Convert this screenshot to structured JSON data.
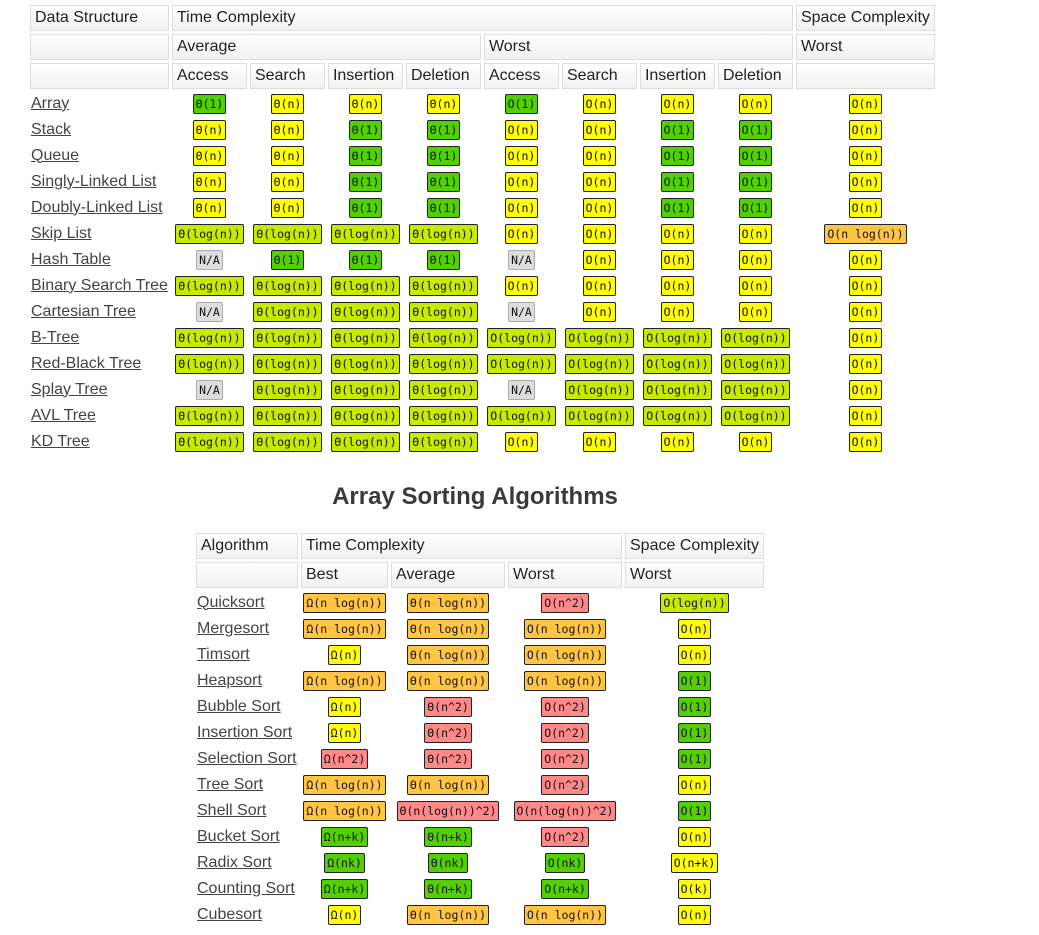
{
  "colors": {
    "green": "#53d000",
    "lgreen": "#c8ea00",
    "yellow": "#ffff00",
    "orange": "#ffc543",
    "red": "#ff8888",
    "gray": "#dddddd"
  },
  "ds_table": {
    "headers": {
      "data_structure": "Data Structure",
      "time_complexity": "Time Complexity",
      "space_complexity": "Space Complexity",
      "average": "Average",
      "worst": "Worst",
      "space_worst": "Worst",
      "ops": [
        "Access",
        "Search",
        "Insertion",
        "Deletion",
        "Access",
        "Search",
        "Insertion",
        "Deletion"
      ]
    },
    "rows": [
      {
        "name": "Array",
        "cells": [
          [
            "Θ(1)",
            "green"
          ],
          [
            "Θ(n)",
            "yellow"
          ],
          [
            "Θ(n)",
            "yellow"
          ],
          [
            "Θ(n)",
            "yellow"
          ],
          [
            "O(1)",
            "green"
          ],
          [
            "O(n)",
            "yellow"
          ],
          [
            "O(n)",
            "yellow"
          ],
          [
            "O(n)",
            "yellow"
          ],
          [
            "O(n)",
            "yellow"
          ]
        ]
      },
      {
        "name": "Stack",
        "cells": [
          [
            "Θ(n)",
            "yellow"
          ],
          [
            "Θ(n)",
            "yellow"
          ],
          [
            "Θ(1)",
            "green"
          ],
          [
            "Θ(1)",
            "green"
          ],
          [
            "O(n)",
            "yellow"
          ],
          [
            "O(n)",
            "yellow"
          ],
          [
            "O(1)",
            "green"
          ],
          [
            "O(1)",
            "green"
          ],
          [
            "O(n)",
            "yellow"
          ]
        ]
      },
      {
        "name": "Queue",
        "cells": [
          [
            "Θ(n)",
            "yellow"
          ],
          [
            "Θ(n)",
            "yellow"
          ],
          [
            "Θ(1)",
            "green"
          ],
          [
            "Θ(1)",
            "green"
          ],
          [
            "O(n)",
            "yellow"
          ],
          [
            "O(n)",
            "yellow"
          ],
          [
            "O(1)",
            "green"
          ],
          [
            "O(1)",
            "green"
          ],
          [
            "O(n)",
            "yellow"
          ]
        ]
      },
      {
        "name": "Singly-Linked List",
        "cells": [
          [
            "Θ(n)",
            "yellow"
          ],
          [
            "Θ(n)",
            "yellow"
          ],
          [
            "Θ(1)",
            "green"
          ],
          [
            "Θ(1)",
            "green"
          ],
          [
            "O(n)",
            "yellow"
          ],
          [
            "O(n)",
            "yellow"
          ],
          [
            "O(1)",
            "green"
          ],
          [
            "O(1)",
            "green"
          ],
          [
            "O(n)",
            "yellow"
          ]
        ]
      },
      {
        "name": "Doubly-Linked List",
        "cells": [
          [
            "Θ(n)",
            "yellow"
          ],
          [
            "Θ(n)",
            "yellow"
          ],
          [
            "Θ(1)",
            "green"
          ],
          [
            "Θ(1)",
            "green"
          ],
          [
            "O(n)",
            "yellow"
          ],
          [
            "O(n)",
            "yellow"
          ],
          [
            "O(1)",
            "green"
          ],
          [
            "O(1)",
            "green"
          ],
          [
            "O(n)",
            "yellow"
          ]
        ]
      },
      {
        "name": "Skip List",
        "cells": [
          [
            "Θ(log(n))",
            "lgreen"
          ],
          [
            "Θ(log(n))",
            "lgreen"
          ],
          [
            "Θ(log(n))",
            "lgreen"
          ],
          [
            "Θ(log(n))",
            "lgreen"
          ],
          [
            "O(n)",
            "yellow"
          ],
          [
            "O(n)",
            "yellow"
          ],
          [
            "O(n)",
            "yellow"
          ],
          [
            "O(n)",
            "yellow"
          ],
          [
            "O(n log(n))",
            "orange"
          ]
        ]
      },
      {
        "name": "Hash Table",
        "cells": [
          [
            "N/A",
            "gray"
          ],
          [
            "Θ(1)",
            "green"
          ],
          [
            "Θ(1)",
            "green"
          ],
          [
            "Θ(1)",
            "green"
          ],
          [
            "N/A",
            "gray"
          ],
          [
            "O(n)",
            "yellow"
          ],
          [
            "O(n)",
            "yellow"
          ],
          [
            "O(n)",
            "yellow"
          ],
          [
            "O(n)",
            "yellow"
          ]
        ]
      },
      {
        "name": "Binary Search Tree",
        "cells": [
          [
            "Θ(log(n))",
            "lgreen"
          ],
          [
            "Θ(log(n))",
            "lgreen"
          ],
          [
            "Θ(log(n))",
            "lgreen"
          ],
          [
            "Θ(log(n))",
            "lgreen"
          ],
          [
            "O(n)",
            "yellow"
          ],
          [
            "O(n)",
            "yellow"
          ],
          [
            "O(n)",
            "yellow"
          ],
          [
            "O(n)",
            "yellow"
          ],
          [
            "O(n)",
            "yellow"
          ]
        ]
      },
      {
        "name": "Cartesian Tree",
        "cells": [
          [
            "N/A",
            "gray"
          ],
          [
            "Θ(log(n))",
            "lgreen"
          ],
          [
            "Θ(log(n))",
            "lgreen"
          ],
          [
            "Θ(log(n))",
            "lgreen"
          ],
          [
            "N/A",
            "gray"
          ],
          [
            "O(n)",
            "yellow"
          ],
          [
            "O(n)",
            "yellow"
          ],
          [
            "O(n)",
            "yellow"
          ],
          [
            "O(n)",
            "yellow"
          ]
        ]
      },
      {
        "name": "B-Tree",
        "cells": [
          [
            "Θ(log(n))",
            "lgreen"
          ],
          [
            "Θ(log(n))",
            "lgreen"
          ],
          [
            "Θ(log(n))",
            "lgreen"
          ],
          [
            "Θ(log(n))",
            "lgreen"
          ],
          [
            "O(log(n))",
            "lgreen"
          ],
          [
            "O(log(n))",
            "lgreen"
          ],
          [
            "O(log(n))",
            "lgreen"
          ],
          [
            "O(log(n))",
            "lgreen"
          ],
          [
            "O(n)",
            "yellow"
          ]
        ]
      },
      {
        "name": "Red-Black Tree",
        "cells": [
          [
            "Θ(log(n))",
            "lgreen"
          ],
          [
            "Θ(log(n))",
            "lgreen"
          ],
          [
            "Θ(log(n))",
            "lgreen"
          ],
          [
            "Θ(log(n))",
            "lgreen"
          ],
          [
            "O(log(n))",
            "lgreen"
          ],
          [
            "O(log(n))",
            "lgreen"
          ],
          [
            "O(log(n))",
            "lgreen"
          ],
          [
            "O(log(n))",
            "lgreen"
          ],
          [
            "O(n)",
            "yellow"
          ]
        ]
      },
      {
        "name": "Splay Tree",
        "cells": [
          [
            "N/A",
            "gray"
          ],
          [
            "Θ(log(n))",
            "lgreen"
          ],
          [
            "Θ(log(n))",
            "lgreen"
          ],
          [
            "Θ(log(n))",
            "lgreen"
          ],
          [
            "N/A",
            "gray"
          ],
          [
            "O(log(n))",
            "lgreen"
          ],
          [
            "O(log(n))",
            "lgreen"
          ],
          [
            "O(log(n))",
            "lgreen"
          ],
          [
            "O(n)",
            "yellow"
          ]
        ]
      },
      {
        "name": "AVL Tree",
        "cells": [
          [
            "Θ(log(n))",
            "lgreen"
          ],
          [
            "Θ(log(n))",
            "lgreen"
          ],
          [
            "Θ(log(n))",
            "lgreen"
          ],
          [
            "Θ(log(n))",
            "lgreen"
          ],
          [
            "O(log(n))",
            "lgreen"
          ],
          [
            "O(log(n))",
            "lgreen"
          ],
          [
            "O(log(n))",
            "lgreen"
          ],
          [
            "O(log(n))",
            "lgreen"
          ],
          [
            "O(n)",
            "yellow"
          ]
        ]
      },
      {
        "name": "KD Tree",
        "cells": [
          [
            "Θ(log(n))",
            "lgreen"
          ],
          [
            "Θ(log(n))",
            "lgreen"
          ],
          [
            "Θ(log(n))",
            "lgreen"
          ],
          [
            "Θ(log(n))",
            "lgreen"
          ],
          [
            "O(n)",
            "yellow"
          ],
          [
            "O(n)",
            "yellow"
          ],
          [
            "O(n)",
            "yellow"
          ],
          [
            "O(n)",
            "yellow"
          ],
          [
            "O(n)",
            "yellow"
          ]
        ]
      }
    ]
  },
  "sorting": {
    "heading": "Array Sorting Algorithms",
    "headers": {
      "algorithm": "Algorithm",
      "time_complexity": "Time Complexity",
      "space_complexity": "Space Complexity",
      "best": "Best",
      "average": "Average",
      "worst": "Worst",
      "space_worst": "Worst"
    },
    "rows": [
      {
        "name": "Quicksort",
        "cells": [
          [
            "Ω(n log(n))",
            "orange"
          ],
          [
            "Θ(n log(n))",
            "orange"
          ],
          [
            "O(n^2)",
            "red"
          ],
          [
            "O(log(n))",
            "lgreen"
          ]
        ]
      },
      {
        "name": "Mergesort",
        "cells": [
          [
            "Ω(n log(n))",
            "orange"
          ],
          [
            "Θ(n log(n))",
            "orange"
          ],
          [
            "O(n log(n))",
            "orange"
          ],
          [
            "O(n)",
            "yellow"
          ]
        ]
      },
      {
        "name": "Timsort",
        "cells": [
          [
            "Ω(n)",
            "yellow"
          ],
          [
            "Θ(n log(n))",
            "orange"
          ],
          [
            "O(n log(n))",
            "orange"
          ],
          [
            "O(n)",
            "yellow"
          ]
        ]
      },
      {
        "name": "Heapsort",
        "cells": [
          [
            "Ω(n log(n))",
            "orange"
          ],
          [
            "Θ(n log(n))",
            "orange"
          ],
          [
            "O(n log(n))",
            "orange"
          ],
          [
            "O(1)",
            "green"
          ]
        ]
      },
      {
        "name": "Bubble Sort",
        "cells": [
          [
            "Ω(n)",
            "yellow"
          ],
          [
            "Θ(n^2)",
            "red"
          ],
          [
            "O(n^2)",
            "red"
          ],
          [
            "O(1)",
            "green"
          ]
        ]
      },
      {
        "name": "Insertion Sort",
        "cells": [
          [
            "Ω(n)",
            "yellow"
          ],
          [
            "Θ(n^2)",
            "red"
          ],
          [
            "O(n^2)",
            "red"
          ],
          [
            "O(1)",
            "green"
          ]
        ]
      },
      {
        "name": "Selection Sort",
        "cells": [
          [
            "Ω(n^2)",
            "red"
          ],
          [
            "Θ(n^2)",
            "red"
          ],
          [
            "O(n^2)",
            "red"
          ],
          [
            "O(1)",
            "green"
          ]
        ]
      },
      {
        "name": "Tree Sort",
        "cells": [
          [
            "Ω(n log(n))",
            "orange"
          ],
          [
            "Θ(n log(n))",
            "orange"
          ],
          [
            "O(n^2)",
            "red"
          ],
          [
            "O(n)",
            "yellow"
          ]
        ]
      },
      {
        "name": "Shell Sort",
        "cells": [
          [
            "Ω(n log(n))",
            "orange"
          ],
          [
            "Θ(n(log(n))^2)",
            "red"
          ],
          [
            "O(n(log(n))^2)",
            "red"
          ],
          [
            "O(1)",
            "green"
          ]
        ]
      },
      {
        "name": "Bucket Sort",
        "cells": [
          [
            "Ω(n+k)",
            "green"
          ],
          [
            "Θ(n+k)",
            "green"
          ],
          [
            "O(n^2)",
            "red"
          ],
          [
            "O(n)",
            "yellow"
          ]
        ]
      },
      {
        "name": "Radix Sort",
        "cells": [
          [
            "Ω(nk)",
            "green"
          ],
          [
            "Θ(nk)",
            "green"
          ],
          [
            "O(nk)",
            "green"
          ],
          [
            "O(n+k)",
            "yellow"
          ]
        ]
      },
      {
        "name": "Counting Sort",
        "cells": [
          [
            "Ω(n+k)",
            "green"
          ],
          [
            "Θ(n+k)",
            "green"
          ],
          [
            "O(n+k)",
            "green"
          ],
          [
            "O(k)",
            "yellow"
          ]
        ]
      },
      {
        "name": "Cubesort",
        "cells": [
          [
            "Ω(n)",
            "yellow"
          ],
          [
            "Θ(n log(n))",
            "orange"
          ],
          [
            "O(n log(n))",
            "orange"
          ],
          [
            "O(n)",
            "yellow"
          ]
        ]
      }
    ]
  }
}
